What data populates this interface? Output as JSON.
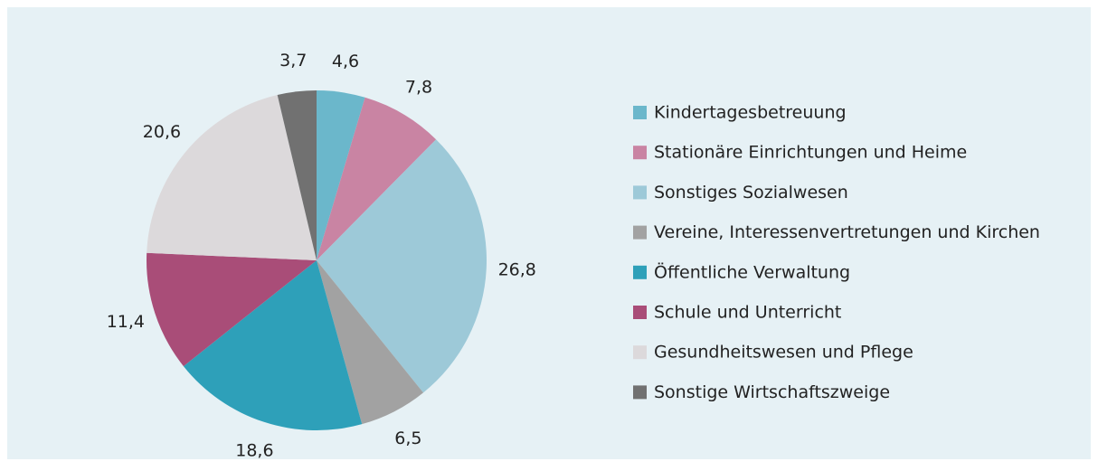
{
  "chart_data": {
    "type": "pie",
    "categories": [
      "Kindertagesbetreuung",
      "Stationäre Einrichtungen und Heime",
      "Sonstiges Sozialwesen",
      "Vereine, Interessenvertretungen und Kirchen",
      "Öffentliche Verwaltung",
      "Schule und Unterricht",
      "Gesundheitswesen und Pflege",
      "Sonstige Wirtschaftszweige"
    ],
    "values": [
      4.6,
      7.8,
      26.8,
      6.5,
      18.6,
      11.4,
      20.6,
      3.7
    ],
    "value_labels": [
      "4,6",
      "7,8",
      "26,8",
      "6,5",
      "18,6",
      "11,4",
      "20,6",
      "3,7"
    ],
    "colors": [
      "#6bb7cb",
      "#c984a3",
      "#9dc9d8",
      "#a2a2a2",
      "#2ea0b9",
      "#a94d78",
      "#dcd9db",
      "#717171"
    ],
    "legend": "right"
  }
}
